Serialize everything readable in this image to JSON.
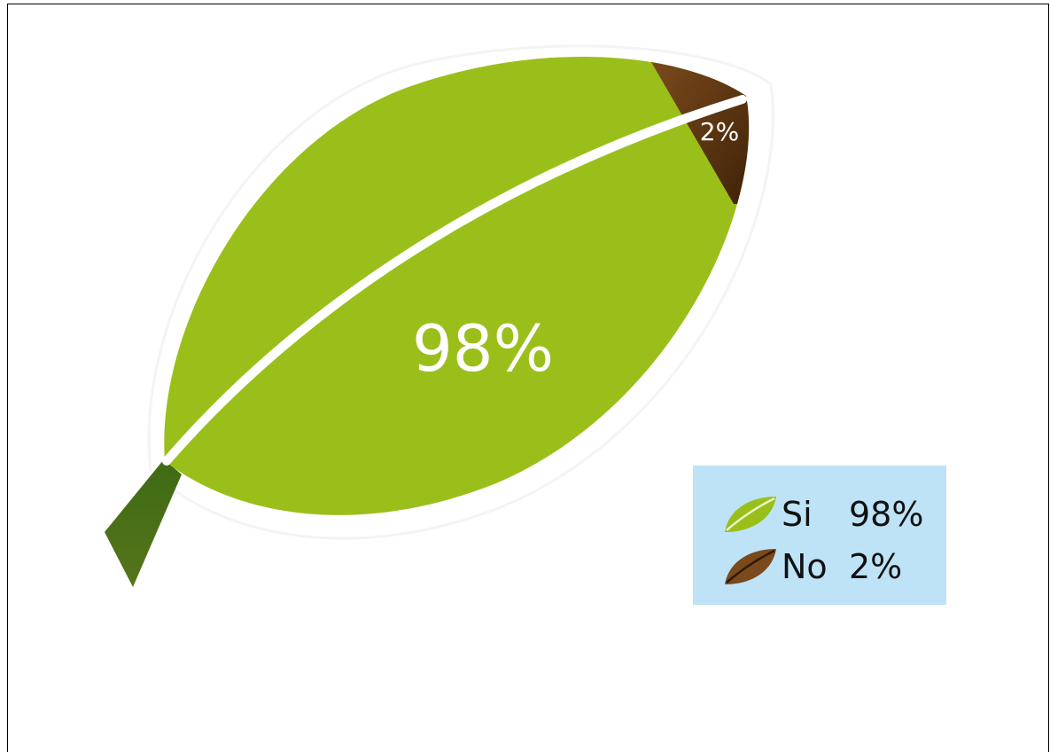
{
  "chart_data": {
    "type": "pie",
    "categories": [
      "Si",
      "No"
    ],
    "values": [
      98,
      2
    ],
    "data_labels": [
      "98%",
      "2%"
    ],
    "colors": [
      "#9bbf1a",
      "#5a3510"
    ],
    "legend": [
      {
        "name": "Si",
        "value": "98%",
        "icon": "green-leaf-icon",
        "color": "#9bbf1a"
      },
      {
        "name": "No",
        "value": "2%",
        "icon": "brown-leaf-icon",
        "color": "#7a4a1c"
      }
    ],
    "legend_position": "bottom-right",
    "title": ""
  }
}
